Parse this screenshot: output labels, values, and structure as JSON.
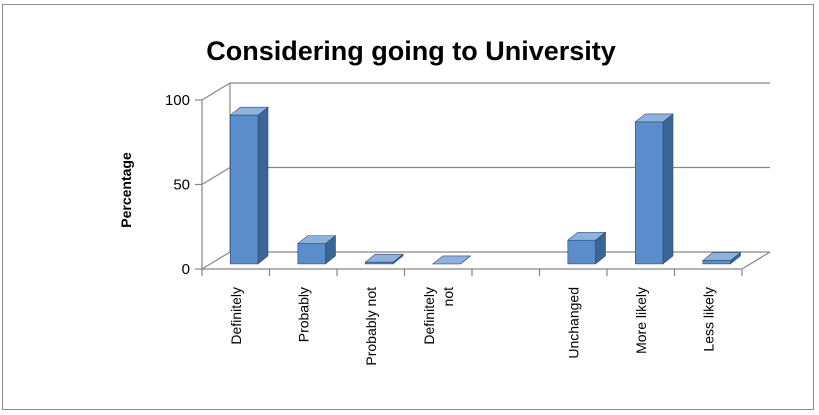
{
  "chart_data": {
    "type": "bar",
    "title": "Considering going to University",
    "xlabel": "",
    "ylabel": "Percentage",
    "ylim": [
      0,
      100
    ],
    "yticks": [
      "0",
      "50",
      "100"
    ],
    "grid": true,
    "style": "3d-clustered-column",
    "bar_color": "#4f81bd",
    "categories": [
      [
        "Definitely"
      ],
      [
        "Probably"
      ],
      [
        "Probably not"
      ],
      [
        "Definitely",
        "not"
      ],
      [
        ""
      ],
      [
        "Unchanged"
      ],
      [
        "More likely"
      ],
      [
        "Less likely"
      ]
    ],
    "values": [
      88,
      12,
      1,
      0,
      null,
      14,
      84,
      2
    ]
  }
}
